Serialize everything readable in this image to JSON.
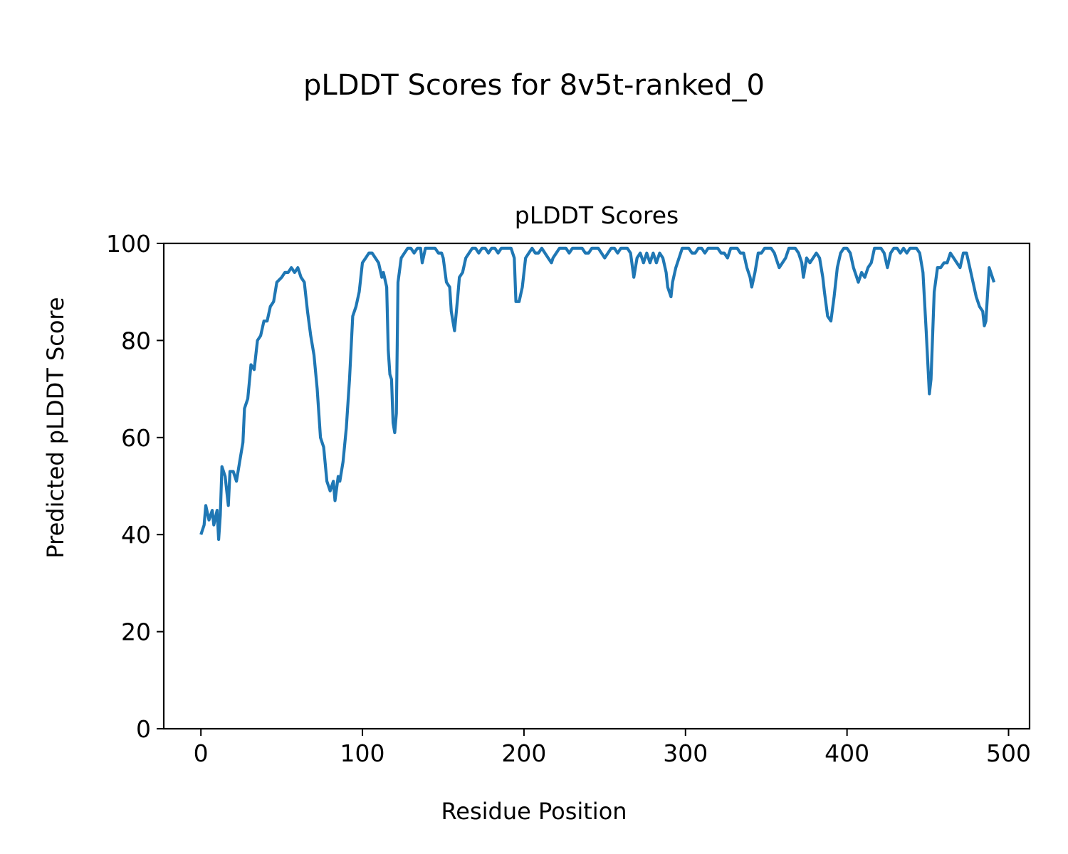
{
  "figure_title": "pLDDT Scores for 8v5t-ranked_0",
  "chart_data": {
    "type": "line",
    "title": "pLDDT Scores",
    "xlabel": "Residue Position",
    "ylabel": "Predicted pLDDT Score",
    "xlim": [
      -23,
      513
    ],
    "ylim": [
      0,
      100
    ],
    "xticks": [
      0,
      100,
      200,
      300,
      400,
      500
    ],
    "yticks": [
      0,
      20,
      40,
      60,
      80,
      100
    ],
    "grid": false,
    "series_color": "#1f77b4",
    "series": [
      {
        "points": [
          [
            0,
            40
          ],
          [
            2,
            42
          ],
          [
            3,
            46
          ],
          [
            5,
            43
          ],
          [
            7,
            45
          ],
          [
            8,
            42
          ],
          [
            10,
            45
          ],
          [
            11,
            39
          ],
          [
            12,
            44
          ],
          [
            13,
            54
          ],
          [
            15,
            52
          ],
          [
            17,
            46
          ],
          [
            18,
            53
          ],
          [
            20,
            53
          ],
          [
            22,
            51
          ],
          [
            24,
            55
          ],
          [
            26,
            59
          ],
          [
            27,
            66
          ],
          [
            29,
            68
          ],
          [
            31,
            75
          ],
          [
            33,
            74
          ],
          [
            35,
            80
          ],
          [
            37,
            81
          ],
          [
            39,
            84
          ],
          [
            41,
            84
          ],
          [
            43,
            87
          ],
          [
            45,
            88
          ],
          [
            47,
            92
          ],
          [
            50,
            93
          ],
          [
            52,
            94
          ],
          [
            54,
            94
          ],
          [
            56,
            95
          ],
          [
            58,
            94
          ],
          [
            60,
            95
          ],
          [
            62,
            93
          ],
          [
            64,
            92
          ],
          [
            66,
            86
          ],
          [
            68,
            81
          ],
          [
            70,
            77
          ],
          [
            72,
            70
          ],
          [
            74,
            60
          ],
          [
            76,
            58
          ],
          [
            78,
            51
          ],
          [
            80,
            49
          ],
          [
            82,
            51
          ],
          [
            83,
            47
          ],
          [
            85,
            52
          ],
          [
            86,
            51
          ],
          [
            88,
            55
          ],
          [
            90,
            62
          ],
          [
            92,
            72
          ],
          [
            94,
            85
          ],
          [
            96,
            87
          ],
          [
            98,
            90
          ],
          [
            100,
            96
          ],
          [
            102,
            97
          ],
          [
            104,
            98
          ],
          [
            106,
            98
          ],
          [
            108,
            97
          ],
          [
            110,
            96
          ],
          [
            112,
            93
          ],
          [
            113,
            94
          ],
          [
            115,
            91
          ],
          [
            116,
            78
          ],
          [
            117,
            73
          ],
          [
            118,
            72
          ],
          [
            119,
            63
          ],
          [
            120,
            61
          ],
          [
            121,
            65
          ],
          [
            122,
            92
          ],
          [
            124,
            97
          ],
          [
            126,
            98
          ],
          [
            128,
            99
          ],
          [
            130,
            99
          ],
          [
            132,
            98
          ],
          [
            134,
            99
          ],
          [
            136,
            99
          ],
          [
            137,
            96
          ],
          [
            139,
            99
          ],
          [
            141,
            99
          ],
          [
            143,
            99
          ],
          [
            145,
            99
          ],
          [
            147,
            98
          ],
          [
            149,
            98
          ],
          [
            150,
            97
          ],
          [
            152,
            92
          ],
          [
            154,
            91
          ],
          [
            155,
            86
          ],
          [
            157,
            82
          ],
          [
            159,
            89
          ],
          [
            160,
            93
          ],
          [
            162,
            94
          ],
          [
            164,
            97
          ],
          [
            166,
            98
          ],
          [
            168,
            99
          ],
          [
            170,
            99
          ],
          [
            172,
            98
          ],
          [
            174,
            99
          ],
          [
            176,
            99
          ],
          [
            178,
            98
          ],
          [
            180,
            99
          ],
          [
            182,
            99
          ],
          [
            184,
            98
          ],
          [
            186,
            99
          ],
          [
            188,
            99
          ],
          [
            190,
            99
          ],
          [
            192,
            99
          ],
          [
            194,
            97
          ],
          [
            195,
            88
          ],
          [
            197,
            88
          ],
          [
            199,
            91
          ],
          [
            201,
            97
          ],
          [
            203,
            98
          ],
          [
            205,
            99
          ],
          [
            207,
            98
          ],
          [
            209,
            98
          ],
          [
            211,
            99
          ],
          [
            213,
            98
          ],
          [
            215,
            97
          ],
          [
            217,
            96
          ],
          [
            218,
            97
          ],
          [
            220,
            98
          ],
          [
            222,
            99
          ],
          [
            224,
            99
          ],
          [
            226,
            99
          ],
          [
            228,
            98
          ],
          [
            230,
            99
          ],
          [
            232,
            99
          ],
          [
            234,
            99
          ],
          [
            236,
            99
          ],
          [
            238,
            98
          ],
          [
            240,
            98
          ],
          [
            242,
            99
          ],
          [
            244,
            99
          ],
          [
            246,
            99
          ],
          [
            248,
            98
          ],
          [
            250,
            97
          ],
          [
            252,
            98
          ],
          [
            254,
            99
          ],
          [
            256,
            99
          ],
          [
            258,
            98
          ],
          [
            260,
            99
          ],
          [
            262,
            99
          ],
          [
            264,
            99
          ],
          [
            266,
            98
          ],
          [
            268,
            93
          ],
          [
            270,
            97
          ],
          [
            272,
            98
          ],
          [
            274,
            96
          ],
          [
            276,
            98
          ],
          [
            278,
            96
          ],
          [
            280,
            98
          ],
          [
            282,
            96
          ],
          [
            284,
            98
          ],
          [
            286,
            97
          ],
          [
            288,
            94
          ],
          [
            289,
            91
          ],
          [
            291,
            89
          ],
          [
            292,
            92
          ],
          [
            294,
            95
          ],
          [
            296,
            97
          ],
          [
            298,
            99
          ],
          [
            300,
            99
          ],
          [
            302,
            99
          ],
          [
            304,
            98
          ],
          [
            306,
            98
          ],
          [
            308,
            99
          ],
          [
            310,
            99
          ],
          [
            312,
            98
          ],
          [
            314,
            99
          ],
          [
            316,
            99
          ],
          [
            318,
            99
          ],
          [
            320,
            99
          ],
          [
            322,
            98
          ],
          [
            324,
            98
          ],
          [
            326,
            97
          ],
          [
            328,
            99
          ],
          [
            330,
            99
          ],
          [
            332,
            99
          ],
          [
            334,
            98
          ],
          [
            336,
            98
          ],
          [
            338,
            95
          ],
          [
            340,
            93
          ],
          [
            341,
            91
          ],
          [
            343,
            94
          ],
          [
            345,
            98
          ],
          [
            347,
            98
          ],
          [
            349,
            99
          ],
          [
            351,
            99
          ],
          [
            353,
            99
          ],
          [
            355,
            98
          ],
          [
            357,
            96
          ],
          [
            358,
            95
          ],
          [
            360,
            96
          ],
          [
            362,
            97
          ],
          [
            364,
            99
          ],
          [
            366,
            99
          ],
          [
            368,
            99
          ],
          [
            370,
            98
          ],
          [
            372,
            96
          ],
          [
            373,
            93
          ],
          [
            375,
            97
          ],
          [
            377,
            96
          ],
          [
            379,
            97
          ],
          [
            381,
            98
          ],
          [
            383,
            97
          ],
          [
            385,
            93
          ],
          [
            386,
            90
          ],
          [
            388,
            85
          ],
          [
            390,
            84
          ],
          [
            392,
            89
          ],
          [
            394,
            95
          ],
          [
            396,
            98
          ],
          [
            398,
            99
          ],
          [
            400,
            99
          ],
          [
            402,
            98
          ],
          [
            404,
            95
          ],
          [
            406,
            93
          ],
          [
            407,
            92
          ],
          [
            409,
            94
          ],
          [
            411,
            93
          ],
          [
            413,
            95
          ],
          [
            415,
            96
          ],
          [
            417,
            99
          ],
          [
            419,
            99
          ],
          [
            421,
            99
          ],
          [
            423,
            98
          ],
          [
            425,
            95
          ],
          [
            427,
            98
          ],
          [
            429,
            99
          ],
          [
            431,
            99
          ],
          [
            433,
            98
          ],
          [
            435,
            99
          ],
          [
            437,
            98
          ],
          [
            439,
            99
          ],
          [
            441,
            99
          ],
          [
            443,
            99
          ],
          [
            445,
            98
          ],
          [
            447,
            94
          ],
          [
            449,
            82
          ],
          [
            451,
            69
          ],
          [
            452,
            72
          ],
          [
            454,
            90
          ],
          [
            456,
            95
          ],
          [
            458,
            95
          ],
          [
            460,
            96
          ],
          [
            462,
            96
          ],
          [
            464,
            98
          ],
          [
            466,
            97
          ],
          [
            468,
            96
          ],
          [
            470,
            95
          ],
          [
            472,
            98
          ],
          [
            474,
            98
          ],
          [
            476,
            95
          ],
          [
            478,
            92
          ],
          [
            480,
            89
          ],
          [
            482,
            87
          ],
          [
            484,
            86
          ],
          [
            485,
            83
          ],
          [
            486,
            84
          ],
          [
            488,
            95
          ],
          [
            490,
            93
          ],
          [
            491,
            92
          ]
        ]
      }
    ]
  }
}
